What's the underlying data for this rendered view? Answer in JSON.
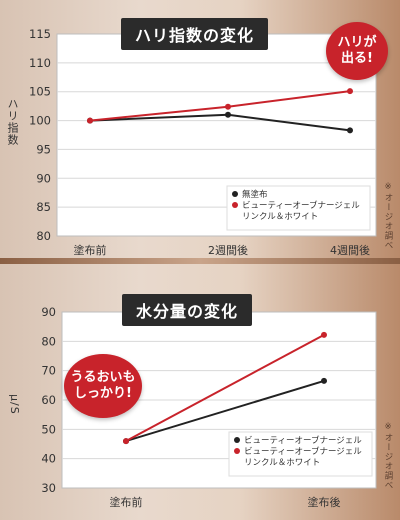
{
  "note": "※オージオ調べ",
  "colors": {
    "red": "#c8232b",
    "black": "#222222"
  },
  "badges": {
    "chart1": [
      "ハリが",
      "出る!"
    ],
    "chart2": [
      "うるおいも",
      "しっかり!"
    ]
  },
  "chart_data": [
    {
      "type": "line",
      "title": "ハリ指数の変化",
      "ylabel": "ハリ指数",
      "categories": [
        "塗布前",
        "2週間後",
        "4週間後"
      ],
      "ylim": [
        80,
        115
      ],
      "yticks": [
        80,
        85,
        90,
        95,
        100,
        105,
        110,
        115
      ],
      "grid": true,
      "legend_position": "bottom-right",
      "series": [
        {
          "name": "無塗布",
          "color": "#222222",
          "values": [
            100,
            101,
            98.3
          ]
        },
        {
          "name": "ビューティーオーブナージェル\nリンクル＆ホワイト",
          "color": "#c8232b",
          "values": [
            100,
            102.4,
            105.1
          ]
        }
      ]
    },
    {
      "type": "line",
      "title": "水分量の変化",
      "ylabel": "μ/S",
      "categories": [
        "塗布前",
        "塗布後"
      ],
      "ylim": [
        30,
        90
      ],
      "yticks": [
        30,
        40,
        50,
        60,
        70,
        80,
        90
      ],
      "grid": true,
      "legend_position": "bottom-right",
      "series": [
        {
          "name": "ビューティーオーブナージェル",
          "color": "#222222",
          "values": [
            46,
            66.5
          ]
        },
        {
          "name": "ビューティーオーブナージェル\nリンクル＆ホワイト",
          "color": "#c8232b",
          "values": [
            46,
            82.2
          ]
        }
      ]
    }
  ]
}
